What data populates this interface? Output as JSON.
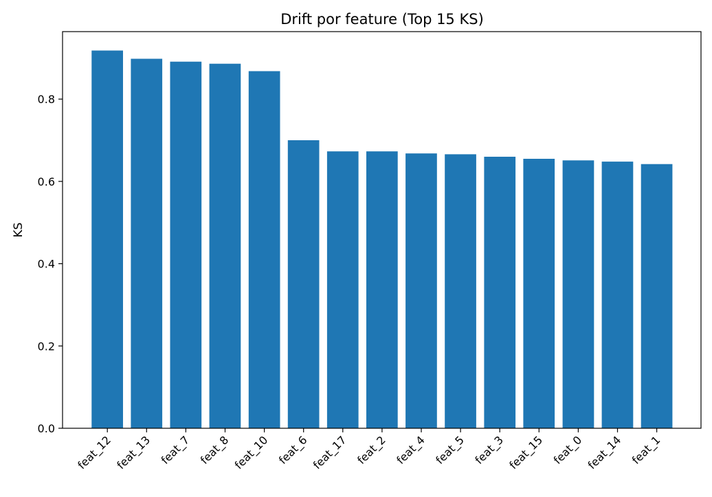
{
  "chart_data": {
    "type": "bar",
    "title": "Drift por feature (Top 15 KS)",
    "xlabel": "",
    "ylabel": "KS",
    "categories": [
      "feat_12",
      "feat_13",
      "feat_7",
      "feat_8",
      "feat_10",
      "feat_6",
      "feat_17",
      "feat_2",
      "feat_4",
      "feat_5",
      "feat_3",
      "feat_15",
      "feat_0",
      "feat_14",
      "feat_1"
    ],
    "values": [
      0.918,
      0.898,
      0.891,
      0.886,
      0.868,
      0.7,
      0.673,
      0.673,
      0.668,
      0.666,
      0.66,
      0.655,
      0.651,
      0.648,
      0.642
    ],
    "ylim": [
      0,
      0.964
    ],
    "yticks": [
      0.0,
      0.2,
      0.4,
      0.6,
      0.8
    ],
    "ytick_labels": [
      "0.0",
      "0.2",
      "0.4",
      "0.6",
      "0.8"
    ],
    "bar_color": "#1f77b4",
    "grid": false,
    "legend": "none"
  }
}
